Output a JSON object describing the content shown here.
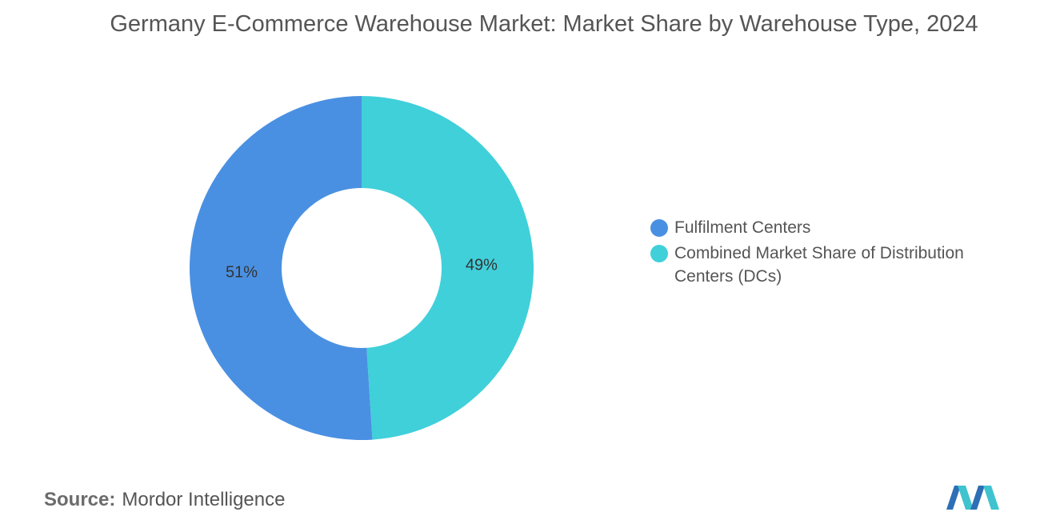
{
  "title": "Germany E-Commerce Warehouse Market: Market Share by Warehouse Type, 2024",
  "source": {
    "label": "Source:",
    "text": "Mordor Intelligence"
  },
  "colors": {
    "fulfilment": "#4a90e2",
    "distribution": "#40d0da"
  },
  "logo": {
    "icon": "mordor-intelligence-logo"
  },
  "chart_data": {
    "type": "pie",
    "style": "donut",
    "title": "Germany E-Commerce Warehouse Market: Market Share by Warehouse Type, 2024",
    "legend_position": "right",
    "series": [
      {
        "name": "Fulfilment Centers",
        "value": 51,
        "label": "51%",
        "color": "#4a90e2"
      },
      {
        "name": "Combined Market Share of Distribution Centers (DCs)",
        "value": 49,
        "label": "49%",
        "color": "#40d0da"
      }
    ]
  }
}
